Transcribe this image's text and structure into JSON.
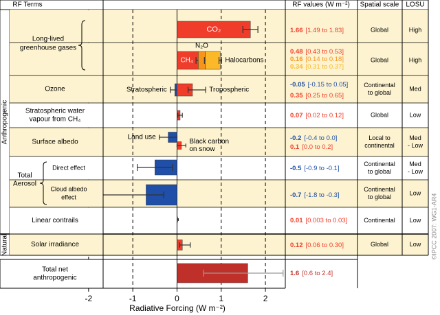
{
  "chart_data": {
    "type": "bar",
    "orientation": "horizontal",
    "header": {
      "terms": "RF Terms",
      "values": "RF values (W m⁻²)",
      "scale": "Spatial scale",
      "losu": "LOSU"
    },
    "x_label": "Radiative Forcing  (W m⁻²)",
    "xlim": [
      -2.2,
      2.45
    ],
    "xticks": [
      -2,
      -1,
      0,
      1,
      2
    ],
    "group_labels": [
      "Anthropogenic",
      "Natural"
    ],
    "aerosol_label": [
      "Total",
      "Aerosol"
    ],
    "copyright": "©IPCC 2007: WG1-AR4",
    "rows": [
      {
        "label": [
          "Long-lived",
          "greenhouse gases"
        ],
        "scale": [
          "Global"
        ],
        "losu": [
          "High"
        ],
        "segments": [
          {
            "name": [
              "CO₂"
            ],
            "value": 1.66,
            "range": "[1.49 to 1.83]",
            "low": 1.49,
            "high": 1.83,
            "color": "#f03c2a"
          }
        ]
      },
      {
        "scale": [
          "Global"
        ],
        "losu": [
          "High"
        ],
        "segments": [
          {
            "name": [
              "CH₄"
            ],
            "value": 0.48,
            "range": "[0.43 to 0.53]",
            "low": 0.43,
            "high": 0.53,
            "color": "#f03c2a"
          },
          {
            "name": [
              "N₂O"
            ],
            "value": 0.16,
            "range": "[0.14 to 0.18]",
            "low": 0.14,
            "high": 0.18,
            "color": "#f7941d"
          },
          {
            "name": [
              "Halocarbons"
            ],
            "value": 0.34,
            "range": "[0.31 to 0.37]",
            "low": 0.31,
            "high": 0.37,
            "color": "#fbb829"
          }
        ]
      },
      {
        "label": [
          "Ozone"
        ],
        "scale": [
          "Continental",
          "to global"
        ],
        "losu": [
          "Med"
        ],
        "segments": [
          {
            "name": [
              "Stratospheric"
            ],
            "value": -0.05,
            "range": "[-0.15 to 0.05]",
            "low": -0.15,
            "high": 0.05,
            "color": "#1f4fa8"
          },
          {
            "name": [
              "Tropospheric"
            ],
            "value": 0.35,
            "range": "[0.25 to 0.65]",
            "low": 0.25,
            "high": 0.65,
            "color": "#f03c2a"
          }
        ]
      },
      {
        "label": [
          "Stratospheric water",
          "vapour from CH₄"
        ],
        "scale": [
          "Global"
        ],
        "losu": [
          "Low"
        ],
        "segments": [
          {
            "value": 0.07,
            "range": "[0.02 to 0.12]",
            "low": 0.02,
            "high": 0.12,
            "color": "#f03c2a"
          }
        ]
      },
      {
        "label": [
          "Surface albedo"
        ],
        "scale": [
          "Local to",
          "continental"
        ],
        "losu": [
          "Med",
          "- Low"
        ],
        "segments": [
          {
            "name": [
              "Land use"
            ],
            "value": -0.2,
            "range": "[-0.4 to 0.0]",
            "low": -0.4,
            "high": 0.0,
            "color": "#1f4fa8"
          },
          {
            "name": [
              "Black carbon",
              "on snow"
            ],
            "value": 0.1,
            "range": "[0.0 to 0.2]",
            "low": 0.0,
            "high": 0.2,
            "color": "#f03c2a"
          }
        ]
      },
      {
        "label": [
          "Direct effect"
        ],
        "scale": [
          "Continental",
          "to global"
        ],
        "losu": [
          "Med",
          "- Low"
        ],
        "segments": [
          {
            "value": -0.5,
            "range": "[-0.9 to -0.1]",
            "low": -0.9,
            "high": -0.1,
            "color": "#1f4fa8"
          }
        ]
      },
      {
        "label": [
          "Cloud albedo",
          "effect"
        ],
        "scale": [
          "Continental",
          "to global"
        ],
        "losu": [
          "Low"
        ],
        "segments": [
          {
            "value": -0.7,
            "range": "[-1.8 to -0.3]",
            "low": -1.8,
            "high": -0.3,
            "color": "#1f4fa8"
          }
        ]
      },
      {
        "label": [
          "Linear contrails"
        ],
        "scale": [
          "Continental"
        ],
        "losu": [
          "Low"
        ],
        "segments": [
          {
            "value": 0.01,
            "range": "[0.003 to 0.03]",
            "low": 0.003,
            "high": 0.03,
            "color": "#f03c2a"
          }
        ]
      },
      {
        "label": [
          "Solar irradiance"
        ],
        "scale": [
          "Global"
        ],
        "losu": [
          "Low"
        ],
        "segments": [
          {
            "value": 0.12,
            "range": "[0.06 to 0.30]",
            "low": 0.06,
            "high": 0.3,
            "color": "#f03c2a"
          }
        ]
      },
      {
        "label": [
          "Total net",
          "anthropogenic"
        ],
        "segments": [
          {
            "value": 1.6,
            "range": "[0.6 to 2.4]",
            "low": 0.6,
            "high": 2.4,
            "color": "#c0302a"
          }
        ]
      }
    ]
  }
}
